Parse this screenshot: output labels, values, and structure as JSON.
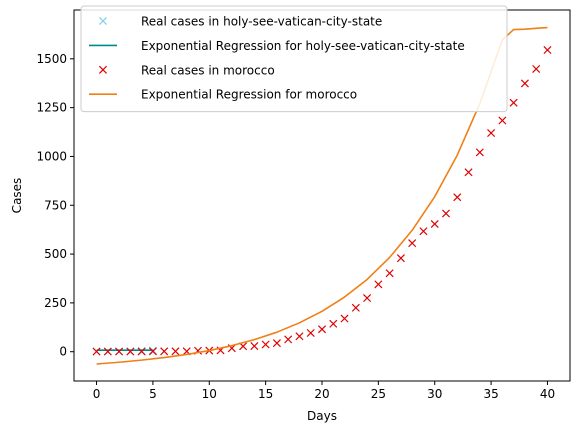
{
  "chart_data": {
    "type": "line",
    "title": "",
    "xlabel": "Days",
    "ylabel": "Cases",
    "xlim": [
      -2,
      42
    ],
    "ylim": [
      -150,
      1750
    ],
    "xticks": [
      0,
      5,
      10,
      15,
      20,
      25,
      30,
      35,
      40
    ],
    "yticks": [
      0,
      250,
      500,
      750,
      1000,
      1250,
      1500
    ],
    "grid": false,
    "legend_position": "top-left",
    "series": [
      {
        "name": "Real cases in holy-see-vatican-city-state",
        "kind": "scatter",
        "marker": "x",
        "color": "#87ceeb",
        "x": [
          0,
          1,
          2,
          3,
          4,
          5
        ],
        "y": [
          1,
          1,
          1,
          1,
          4,
          6
        ]
      },
      {
        "name": "Exponential Regression for holy-see-vatican-city-state",
        "kind": "line",
        "color": "#008b8b",
        "x": [
          0,
          1,
          2,
          3,
          4,
          5
        ],
        "y": [
          8,
          8,
          8,
          8,
          8,
          8
        ]
      },
      {
        "name": "Real cases in morocco",
        "kind": "scatter",
        "marker": "x",
        "color": "#e00000",
        "x": [
          0,
          1,
          2,
          3,
          4,
          5,
          6,
          7,
          8,
          9,
          10,
          11,
          12,
          13,
          14,
          15,
          16,
          17,
          18,
          19,
          20,
          21,
          22,
          23,
          24,
          25,
          26,
          27,
          28,
          29,
          30,
          31,
          32,
          33,
          34,
          35,
          36,
          37,
          38,
          39,
          40
        ],
        "y": [
          1,
          1,
          1,
          1,
          1,
          2,
          2,
          2,
          2,
          5,
          6,
          7,
          18,
          28,
          29,
          37,
          44,
          63,
          79,
          96,
          115,
          143,
          170,
          225,
          275,
          345,
          402,
          479,
          556,
          617,
          654,
          708,
          791,
          919,
          1021,
          1120,
          1184,
          1275,
          1374,
          1448,
          1545
        ]
      },
      {
        "name": "Exponential Regression for morocco",
        "kind": "line",
        "color": "#f07f16",
        "x": [
          0,
          2,
          4,
          6,
          8,
          10,
          12,
          14,
          16,
          18,
          20,
          22,
          24,
          26,
          28,
          30,
          32,
          34,
          36,
          37,
          38,
          39,
          40
        ],
        "y": [
          -63,
          -54,
          -43,
          -30,
          -14,
          6,
          31,
          62,
          100,
          148,
          207,
          280,
          370,
          483,
          622,
          794,
          1007,
          1271,
          1597,
          1650,
          1652,
          1656,
          1660
        ]
      }
    ]
  }
}
